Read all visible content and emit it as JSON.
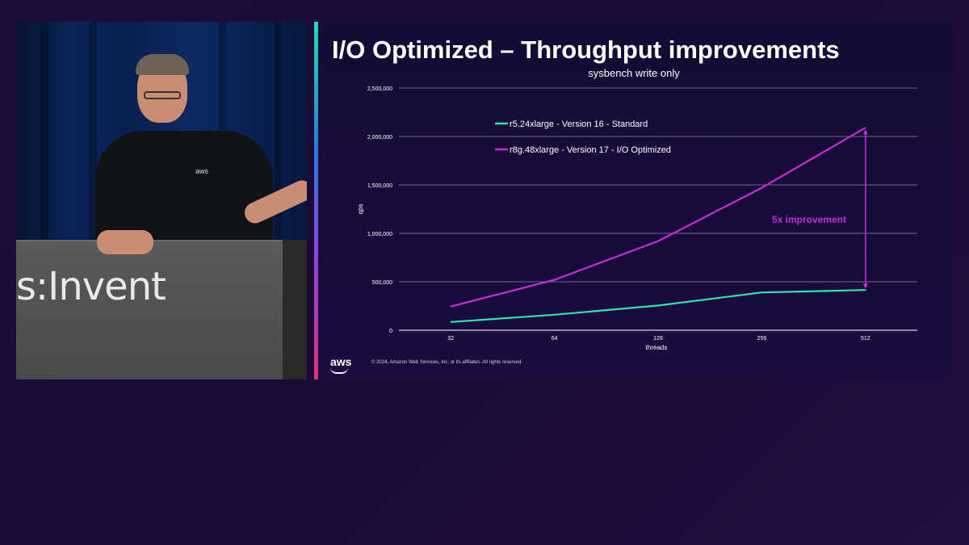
{
  "video": {
    "podium_text": "s:Invent",
    "shirt_logo": "aws"
  },
  "slide": {
    "title": "I/O Optimized – Throughput improvements",
    "footer_logo": "aws",
    "copyright": "© 2024, Amazon Web Services, Inc. or its affiliates. All rights reserved.",
    "annotation": "5x improvement",
    "colors": {
      "accent_green": "#2ee6a5",
      "accent_magenta": "#c62ed6"
    }
  },
  "chart_data": {
    "type": "line",
    "title": "sysbench write only",
    "xlabel": "threads",
    "ylabel": "qps",
    "categories": [
      "32",
      "64",
      "128",
      "256",
      "512"
    ],
    "ylim": [
      0,
      2500000
    ],
    "yticks": [
      0,
      500000,
      1000000,
      1500000,
      2000000,
      2500000
    ],
    "ytick_labels": [
      "0",
      "500,000",
      "1,000,000",
      "1,500,000",
      "2,000,000",
      "2,500,000"
    ],
    "grid": true,
    "legend_position": "top-left",
    "series": [
      {
        "name": "r5.24xlarge - Version 16 - Standard",
        "color": "#2ee6a5",
        "values": [
          85000,
          160000,
          255000,
          390000,
          415000
        ]
      },
      {
        "name": "r8g.48xlarge - Version 17 - I/O Optimized",
        "color": "#c62ed6",
        "values": [
          245000,
          520000,
          920000,
          1470000,
          2090000
        ]
      }
    ]
  }
}
